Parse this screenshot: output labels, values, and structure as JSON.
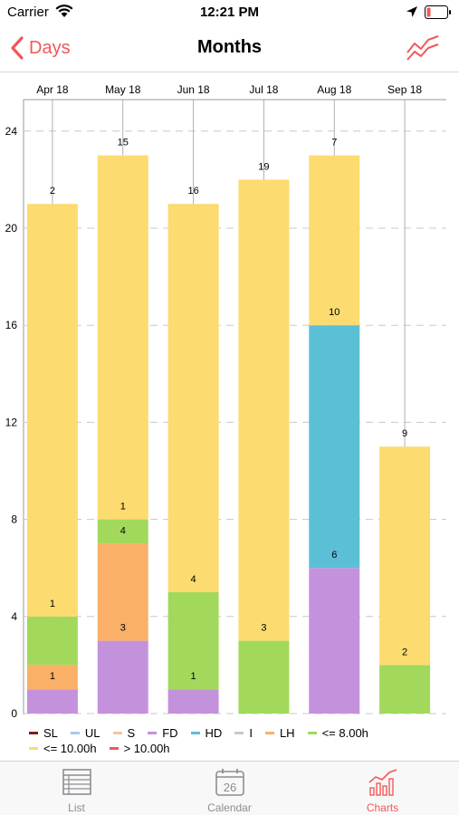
{
  "status_bar": {
    "carrier": "Carrier",
    "time": "12:21 PM",
    "icons": [
      "wifi-icon",
      "location-arrow-icon",
      "battery-low-icon"
    ],
    "battery_color": "#f2575a"
  },
  "nav": {
    "back_label": "Days",
    "title": "Months",
    "right_icon": "line-chart-icon",
    "accent_color": "#f2575a"
  },
  "chart_data": {
    "type": "bar",
    "stacked": true,
    "categories": [
      "Apr 18",
      "May 18",
      "Jun 18",
      "Jul 18",
      "Aug 18",
      "Sep 18"
    ],
    "ylim": [
      0,
      25
    ],
    "y_ticks": [
      0,
      4,
      8,
      12,
      16,
      20,
      24
    ],
    "grid": "dashed horizontal",
    "series": [
      {
        "name": "SL",
        "color": "#7a1f1f",
        "values": [
          0,
          0,
          0,
          0,
          0,
          0
        ]
      },
      {
        "name": "UL",
        "color": "#a8c8f0",
        "values": [
          0,
          0,
          0,
          0,
          0,
          0
        ]
      },
      {
        "name": "S",
        "color": "#f5c89a",
        "values": [
          0,
          0,
          0,
          0,
          0,
          0
        ]
      },
      {
        "name": "FD",
        "color": "#c492dc",
        "values": [
          1,
          3,
          1,
          0,
          6,
          0
        ]
      },
      {
        "name": "HD",
        "color": "#5bbfd6",
        "values": [
          0,
          0,
          0,
          0,
          10,
          0
        ]
      },
      {
        "name": "I",
        "color": "#c8c8c8",
        "values": [
          0,
          0,
          0,
          0,
          0,
          0
        ]
      },
      {
        "name": "LH",
        "color": "#fbb068",
        "values": [
          1,
          4,
          0,
          0,
          0,
          0
        ]
      },
      {
        "name": "<= 8.00h",
        "color": "#a2d95c",
        "values": [
          2,
          1,
          4,
          3,
          0,
          2
        ]
      },
      {
        "name": "<= 10.00h",
        "color": "#fcdb70",
        "values": [
          17,
          15,
          16,
          19,
          7,
          9
        ]
      },
      {
        "name": "> 10.00h",
        "color": "#f2575a",
        "values": [
          0,
          0,
          0,
          0,
          0,
          0
        ]
      }
    ],
    "segment_labels": [
      [
        "1",
        "",
        "1",
        "2",
        "17"
      ],
      [
        "3",
        "4",
        "1",
        "15"
      ],
      [
        "1",
        "4",
        "16"
      ],
      [
        "3",
        "19"
      ],
      [
        "6",
        "10",
        "7"
      ],
      [
        "2",
        "9"
      ]
    ],
    "legend_position": "bottom-left"
  },
  "tabs": [
    {
      "label": "List",
      "icon": "list-icon",
      "active": false
    },
    {
      "label": "Calendar",
      "icon": "calendar-icon",
      "calendar_day": "26",
      "active": false
    },
    {
      "label": "Charts",
      "icon": "bar-chart-icon",
      "active": true
    }
  ]
}
